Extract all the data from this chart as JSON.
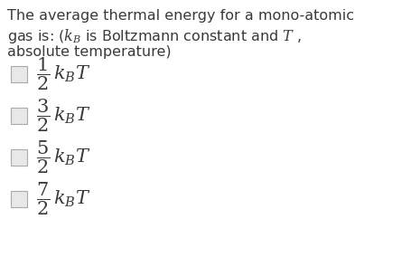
{
  "background_color": "#ffffff",
  "text_color": "#3a3a3a",
  "question_lines": [
    "The average thermal energy for a mono-atomic",
    "gas is: ($k_B$ is Boltzmann constant and $T$ ,",
    "absolute temperature)"
  ],
  "options": [
    "$\\dfrac{1}{2}\\,k_BT$",
    "$\\dfrac{3}{2}\\,k_BT$",
    "$\\dfrac{5}{2}\\,k_BT$",
    "$\\dfrac{7}{2}\\,k_BT$"
  ],
  "question_fontsize": 11.5,
  "option_fontsize": 15,
  "checkbox_color": "#e8e8e8",
  "checkbox_edge_color": "#aaaaaa",
  "figwidth": 4.56,
  "figheight": 2.84,
  "dpi": 100
}
